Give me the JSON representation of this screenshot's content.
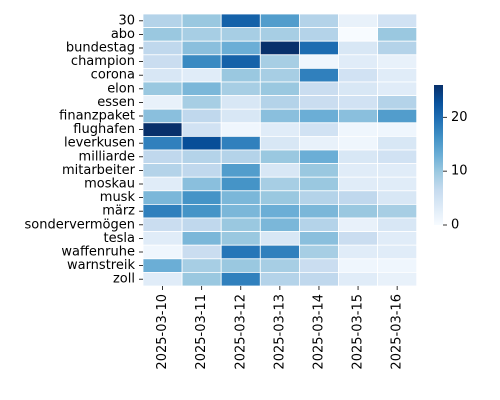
{
  "chart_data": {
    "type": "heatmap",
    "rows": [
      "30",
      "abo",
      "bundestag",
      "champion",
      "corona",
      "elon",
      "essen",
      "finanzpaket",
      "flughafen",
      "leverkusen",
      "milliarde",
      "mitarbeiter",
      "moskau",
      "musk",
      "märz",
      "sondervermögen",
      "tesla",
      "waffenruhe",
      "warnstreik",
      "zoll"
    ],
    "columns": [
      "2025-03-10",
      "2025-03-11",
      "2025-03-12",
      "2025-03-13",
      "2025-03-14",
      "2025-03-15",
      "2025-03-16"
    ],
    "values": [
      [
        8,
        10,
        21,
        15,
        8,
        2,
        5
      ],
      [
        10,
        9,
        9,
        9,
        8,
        0,
        10
      ],
      [
        7,
        11,
        13,
        26,
        20,
        4,
        8
      ],
      [
        6,
        17,
        21,
        9,
        1,
        3,
        2
      ],
      [
        4,
        3,
        10,
        9,
        18,
        5,
        3
      ],
      [
        10,
        12,
        9,
        10,
        6,
        4,
        3
      ],
      [
        2,
        9,
        4,
        8,
        6,
        5,
        8
      ],
      [
        11,
        7,
        4,
        11,
        13,
        11,
        15
      ],
      [
        26,
        5,
        1,
        3,
        5,
        1,
        1
      ],
      [
        18,
        23,
        18,
        4,
        2,
        1,
        4
      ],
      [
        7,
        8,
        8,
        10,
        13,
        4,
        5
      ],
      [
        8,
        7,
        15,
        4,
        10,
        3,
        3
      ],
      [
        3,
        11,
        16,
        9,
        10,
        3,
        3
      ],
      [
        12,
        16,
        12,
        10,
        8,
        7,
        4
      ],
      [
        18,
        16,
        12,
        13,
        12,
        10,
        9
      ],
      [
        6,
        7,
        10,
        12,
        8,
        2,
        4
      ],
      [
        3,
        12,
        10,
        4,
        11,
        6,
        3
      ],
      [
        1,
        6,
        19,
        18,
        9,
        3,
        3
      ],
      [
        13,
        9,
        10,
        9,
        6,
        1,
        1
      ],
      [
        3,
        10,
        18,
        8,
        7,
        3,
        2
      ]
    ],
    "colorbar": {
      "min": 0,
      "max": 26,
      "ticks": [
        0,
        10,
        20
      ]
    },
    "colormap": [
      "#f7fbff",
      "#deebf7",
      "#c6dbef",
      "#9ecae1",
      "#6baed6",
      "#4292c6",
      "#2171b5",
      "#08519c",
      "#08306b"
    ],
    "grid_line_color": "#ffffff"
  }
}
